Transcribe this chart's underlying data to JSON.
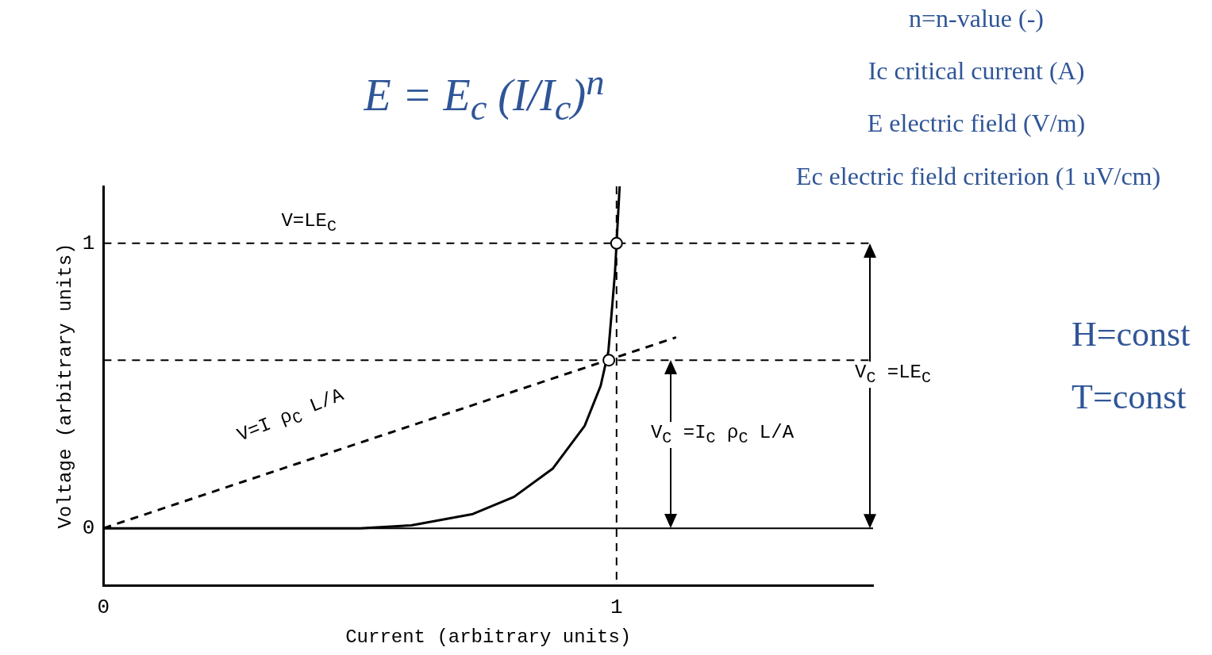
{
  "chart_data": {
    "type": "line",
    "xlabel": "Current (arbitrary units)",
    "ylabel": "Voltage (arbitrary units)",
    "xlim": [
      0,
      1.5
    ],
    "ylim": [
      -0.2,
      1.2
    ],
    "xticks": [
      0,
      1
    ],
    "yticks": [
      0,
      1
    ],
    "grid": false,
    "legend": false,
    "series": [
      {
        "color": "#000000",
        "line_style": "solid",
        "marker": "none",
        "x": [
          0,
          0.3,
          0.5,
          0.6,
          0.72,
          0.8,
          0.876,
          0.938,
          0.969,
          0.984,
          0.992,
          0.997,
          1.0,
          1.006
        ],
        "values": [
          0,
          0,
          0,
          0.01,
          0.05,
          0.11,
          0.21,
          0.36,
          0.5,
          0.62,
          0.79,
          0.9,
          1.0,
          1.2
        ]
      },
      {
        "color": "#000000",
        "line_style": "dashed",
        "marker": "none",
        "x": [
          0,
          1.116
        ],
        "values": [
          0,
          0.67
        ]
      },
      {
        "type": "scatter",
        "color": "#000000",
        "marker": "circle",
        "x": [
          0.985,
          1.0
        ],
        "values": [
          0.59,
          1.0
        ]
      }
    ],
    "ref_lines": [
      {
        "axis": "y",
        "value": 0,
        "line_style": "solid"
      },
      {
        "axis": "y",
        "value": 1,
        "label": "V=LE$_{C}$",
        "line_style": "dashed"
      },
      {
        "axis": "y",
        "value": 0.59,
        "line_style": "dashed"
      },
      {
        "axis": "x",
        "value": 1,
        "line_style": "dashed"
      }
    ],
    "annotations": [
      "E = E$_{c}$ (I/I$_{c}$)$^{n}$",
      "n=n-value (-)",
      "Ic critical current (A)",
      "E electric field (V/m)",
      "Ec electric field criterion (1 uV/cm)",
      "H=const",
      "T=const",
      "V=I ρ$_{C}$ L/A",
      "V$_{C}$ =LE$_{C}$",
      "V$_{C}$ =I$_{C}$ ρ$_{C}$ L/A"
    ]
  }
}
